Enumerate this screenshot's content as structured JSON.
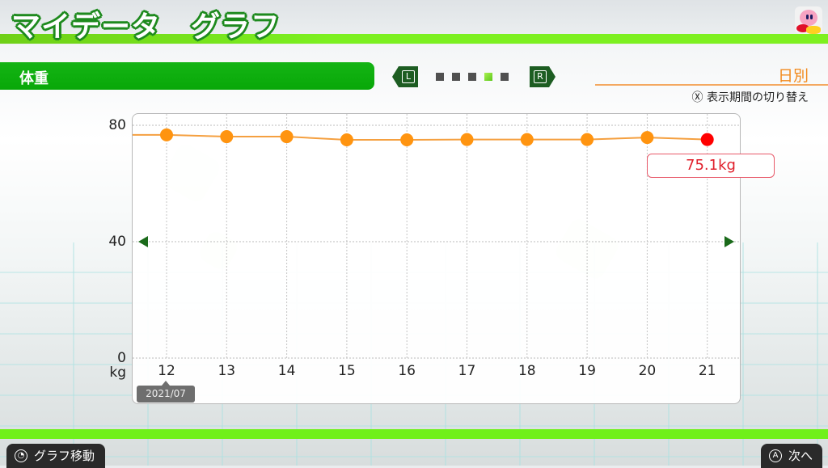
{
  "header": {
    "title": "マイデータ　グラフ",
    "avatar_icon": "kirby-avatar"
  },
  "category": {
    "label": "体重",
    "prev_button": "L",
    "next_button": "R",
    "pages": 5,
    "active_page": 4
  },
  "period": {
    "label": "日別",
    "hint_button": "Ⓧ",
    "hint": "表示期間の切り替え"
  },
  "chart": {
    "month_tag": "2021/07",
    "selected_value": "75.1kg",
    "unit": "kg"
  },
  "chart_data": {
    "type": "line",
    "title": "体重",
    "xlabel": "",
    "ylabel": "kg",
    "x": [
      "12",
      "13",
      "14",
      "15",
      "16",
      "17",
      "18",
      "19",
      "20",
      "21"
    ],
    "series": [
      {
        "name": "体重",
        "values": [
          76.7,
          76.1,
          76.1,
          75.0,
          75.0,
          75.1,
          75.1,
          75.1,
          75.8,
          75.1
        ]
      }
    ],
    "y_ticks": [
      "80",
      "40",
      "0"
    ],
    "ylim": [
      0,
      80
    ],
    "grid": true,
    "highlight": {
      "x": "21",
      "value": 75.1,
      "label": "75.1kg"
    },
    "x_group_label": "2021/07",
    "point_color": "#ff9410",
    "highlight_color": "#ff0000",
    "line_color": "#f5a040"
  },
  "footer": {
    "left_button_icon": "L-stick",
    "left_button_label": "グラフ移動",
    "right_button_icon": "Ⓐ",
    "right_button_label": "次へ"
  }
}
